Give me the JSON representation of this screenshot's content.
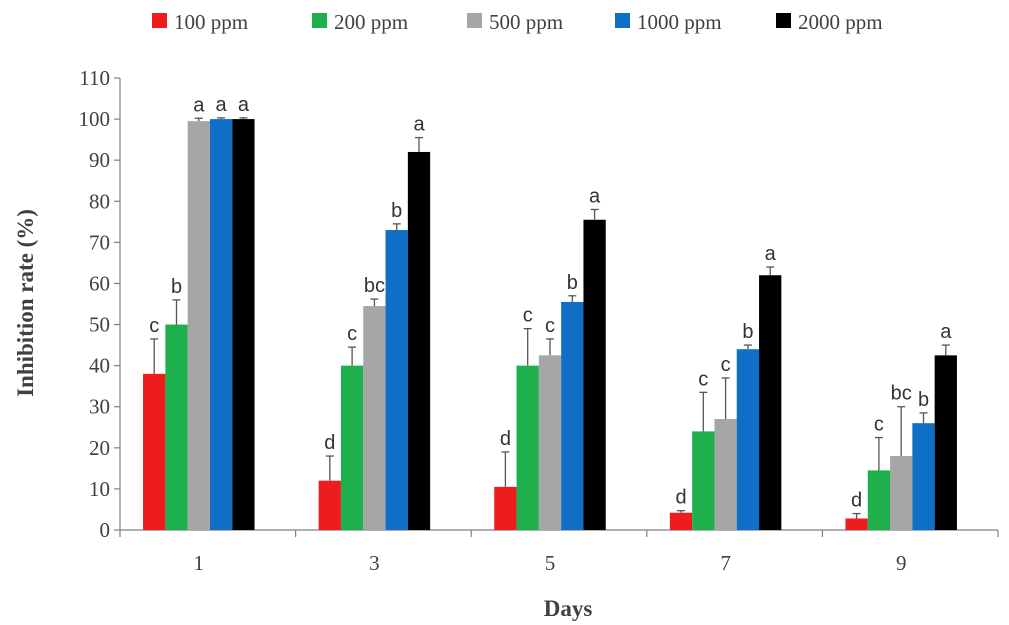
{
  "chart_data": {
    "type": "bar",
    "title": "",
    "xlabel": "Days",
    "ylabel": "Inhibition rate (%)",
    "ylim": [
      0,
      110
    ],
    "ytick_step": 10,
    "grid": false,
    "legend_position": "top",
    "categories": [
      "1",
      "3",
      "5",
      "7",
      "9"
    ],
    "series": [
      {
        "name": "100 ppm",
        "color": "#ee1c1c",
        "values": [
          38,
          12,
          10.5,
          4.2,
          2.8
        ],
        "errors": [
          8.5,
          6,
          8.5,
          0.5,
          1.2
        ],
        "labels": [
          "c",
          "d",
          "d",
          "d",
          "d"
        ]
      },
      {
        "name": "200 ppm",
        "color": "#1eb04c",
        "values": [
          50,
          40,
          40,
          24,
          14.5
        ],
        "errors": [
          6,
          4.5,
          9,
          9.5,
          8
        ],
        "labels": [
          "b",
          "c",
          "c",
          "c",
          "c"
        ]
      },
      {
        "name": "500 ppm",
        "color": "#a6a6a6",
        "values": [
          99.5,
          54.5,
          42.5,
          27,
          18
        ],
        "errors": [
          0.7,
          1.7,
          4,
          10,
          12
        ],
        "labels": [
          "a",
          "bc",
          "c",
          "c",
          "bc"
        ]
      },
      {
        "name": "1000 ppm",
        "color": "#0f6fc6",
        "values": [
          100,
          73,
          55.5,
          44,
          26
        ],
        "errors": [
          0.3,
          1.5,
          1.5,
          1,
          2.5
        ],
        "labels": [
          "a",
          "b",
          "b",
          "b",
          "b"
        ]
      },
      {
        "name": "2000 ppm",
        "color": "#000000",
        "values": [
          100,
          92,
          75.5,
          62,
          42.5
        ],
        "errors": [
          0.3,
          3.5,
          2.5,
          2,
          2.5
        ],
        "labels": [
          "a",
          "a",
          "a",
          "a",
          "a"
        ]
      }
    ]
  }
}
